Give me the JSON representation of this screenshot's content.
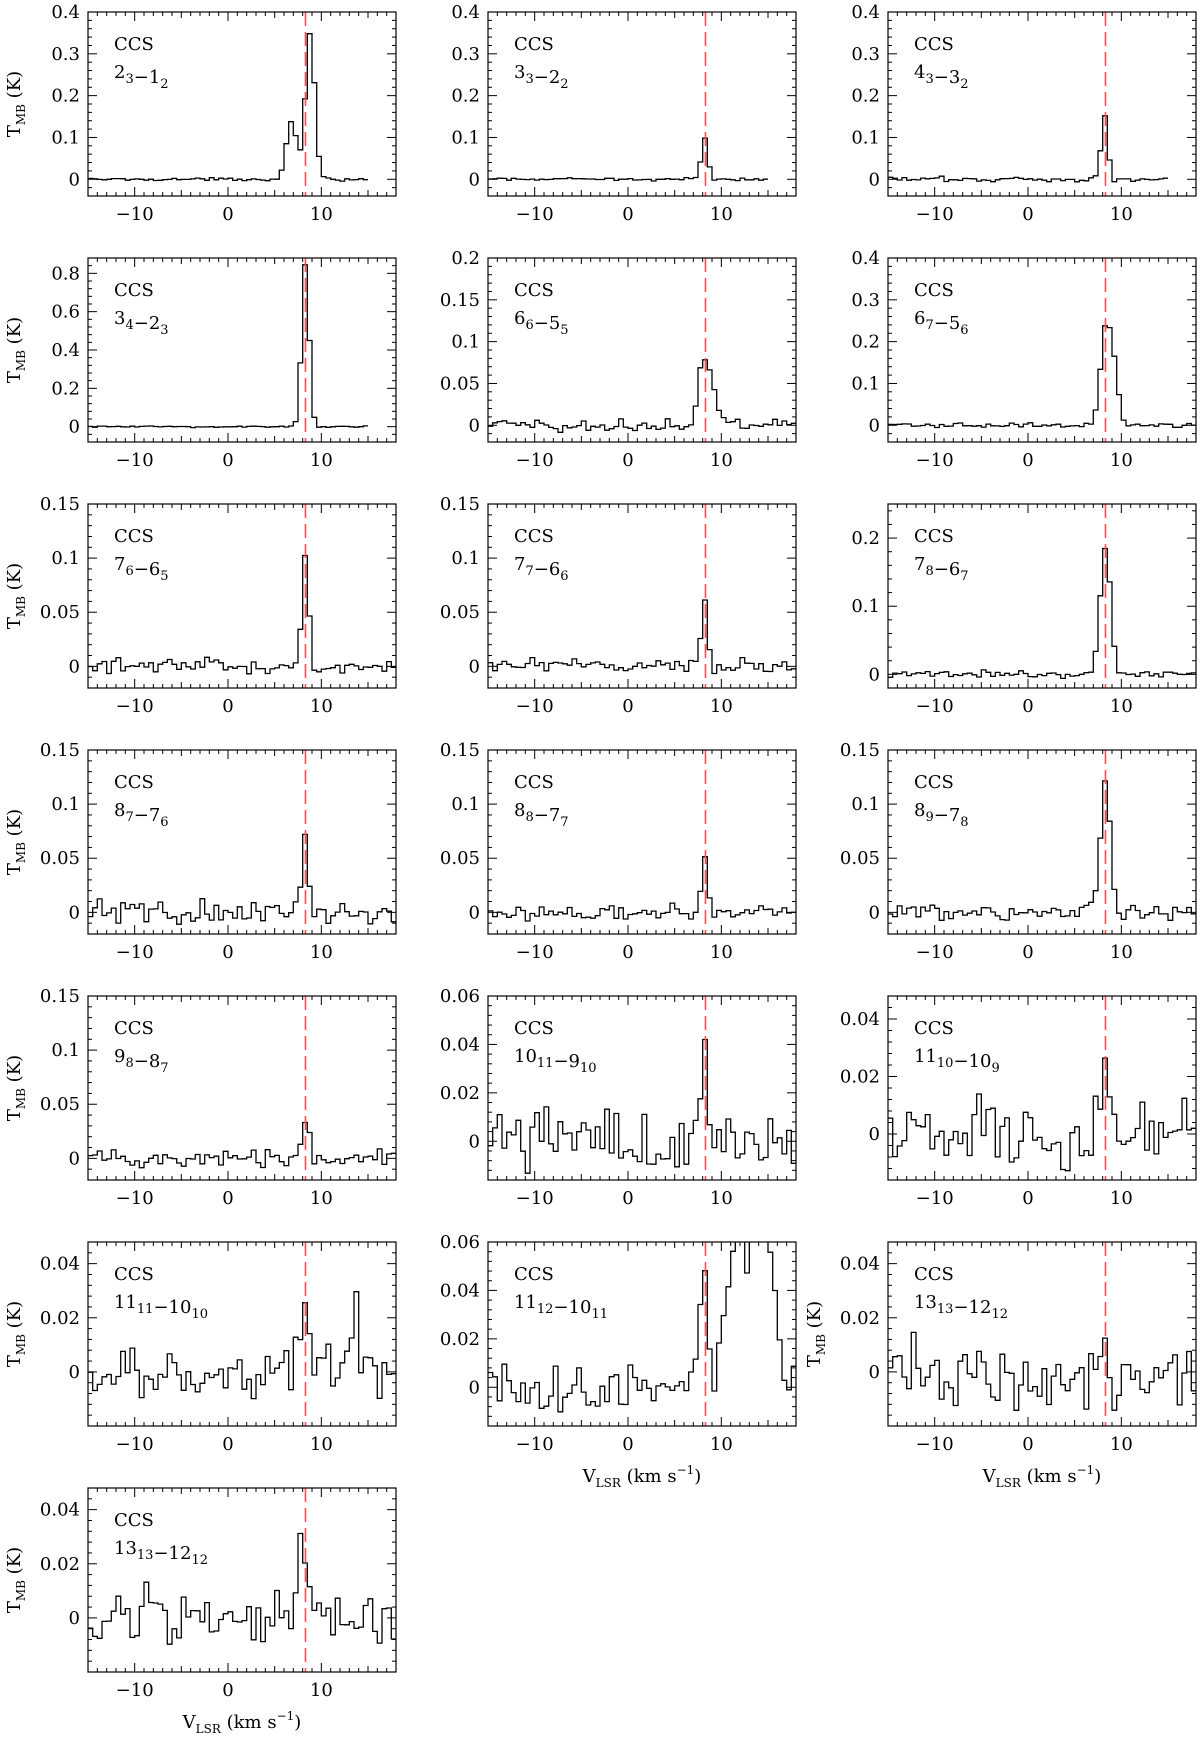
{
  "chart_data": {
    "type": "line",
    "step": true,
    "xlim": [
      -15,
      18
    ],
    "x_ticks": [
      -10,
      0,
      10
    ],
    "x_tick_labels": [
      "−10",
      "0",
      "10"
    ],
    "vlsr_marker": 8.3,
    "marker_color": "#ff4d4d",
    "xlabel": {
      "main": "V",
      "sub": "LSR",
      "rest": " (km s",
      "sup": "−1",
      "end": ")"
    },
    "ylabel": {
      "main": "T",
      "sub": "MB",
      "rest": " (K)"
    },
    "panels": [
      {
        "molecule": "CCS",
        "transition": [
          {
            "t": "2"
          },
          {
            "t": "3",
            "sub": true
          },
          {
            "t": "−1"
          },
          {
            "t": "2",
            "sub": true
          }
        ],
        "ylim": [
          -0.04,
          0.4
        ],
        "y_ticks": [
          0,
          0.1,
          0.2,
          0.3,
          0.4
        ],
        "y_tick_labels": [
          "0",
          "0.1",
          "0.2",
          "0.3",
          "0.4"
        ],
        "x_range": [
          -15,
          15
        ],
        "noise": 0.002,
        "peaks": [
          {
            "v": 6.8,
            "w": 0.55,
            "a": 0.14
          },
          {
            "v": 8.8,
            "w": 0.5,
            "a": 0.35
          }
        ],
        "show_ylabel": true,
        "show_xlabel": false
      },
      {
        "molecule": "CCS",
        "transition": [
          {
            "t": "3"
          },
          {
            "t": "3",
            "sub": true
          },
          {
            "t": "−2"
          },
          {
            "t": "2",
            "sub": true
          }
        ],
        "ylim": [
          -0.04,
          0.4
        ],
        "y_ticks": [
          0,
          0.1,
          0.2,
          0.3,
          0.4
        ],
        "y_tick_labels": [
          "0",
          "0.1",
          "0.2",
          "0.3",
          "0.4"
        ],
        "x_range": [
          -15,
          15
        ],
        "noise": 0.002,
        "peaks": [
          {
            "v": 8.2,
            "w": 0.35,
            "a": 0.1
          }
        ],
        "show_ylabel": false,
        "show_xlabel": false
      },
      {
        "molecule": "CCS",
        "transition": [
          {
            "t": "4"
          },
          {
            "t": "3",
            "sub": true
          },
          {
            "t": "−3"
          },
          {
            "t": "2",
            "sub": true
          }
        ],
        "ylim": [
          -0.04,
          0.4
        ],
        "y_ticks": [
          0,
          0.1,
          0.2,
          0.3,
          0.4
        ],
        "y_tick_labels": [
          "0",
          "0.1",
          "0.2",
          "0.3",
          "0.4"
        ],
        "x_range": [
          -15,
          15
        ],
        "noise": 0.004,
        "peaks": [
          {
            "v": 8.2,
            "w": 0.35,
            "a": 0.15
          }
        ],
        "show_ylabel": false,
        "show_xlabel": false
      },
      {
        "molecule": "CCS",
        "transition": [
          {
            "t": "3"
          },
          {
            "t": "4",
            "sub": true
          },
          {
            "t": "−2"
          },
          {
            "t": "3",
            "sub": true
          }
        ],
        "ylim": [
          -0.08,
          0.88
        ],
        "y_ticks": [
          0,
          0.2,
          0.4,
          0.6,
          0.8
        ],
        "y_tick_labels": [
          "0",
          "0.2",
          "0.4",
          "0.6",
          "0.8"
        ],
        "x_range": [
          -15,
          15
        ],
        "noise": 0.003,
        "peaks": [
          {
            "v": 8.3,
            "w": 0.4,
            "a": 0.85
          }
        ],
        "show_ylabel": true,
        "show_xlabel": false
      },
      {
        "molecule": "CCS",
        "transition": [
          {
            "t": "6"
          },
          {
            "t": "6",
            "sub": true
          },
          {
            "t": "−5"
          },
          {
            "t": "5",
            "sub": true
          }
        ],
        "ylim": [
          -0.02,
          0.2
        ],
        "y_ticks": [
          0,
          0.05,
          0.1,
          0.15,
          0.2
        ],
        "y_tick_labels": [
          "0",
          "0.05",
          "0.1",
          "0.15",
          "0.2"
        ],
        "x_range": [
          -15,
          18
        ],
        "noise": 0.005,
        "peaks": [
          {
            "v": 8.0,
            "w": 0.5,
            "a": 0.07
          },
          {
            "v": 9.0,
            "w": 0.5,
            "a": 0.05
          }
        ],
        "show_ylabel": false,
        "show_xlabel": false
      },
      {
        "molecule": "CCS",
        "transition": [
          {
            "t": "6"
          },
          {
            "t": "7",
            "sub": true
          },
          {
            "t": "−5"
          },
          {
            "t": "6",
            "sub": true
          }
        ],
        "ylim": [
          -0.04,
          0.4
        ],
        "y_ticks": [
          0,
          0.1,
          0.2,
          0.3,
          0.4
        ],
        "y_tick_labels": [
          "0",
          "0.1",
          "0.2",
          "0.3",
          "0.4"
        ],
        "x_range": [
          -15,
          18
        ],
        "noise": 0.003,
        "peaks": [
          {
            "v": 8.3,
            "w": 0.55,
            "a": 0.22
          },
          {
            "v": 9.2,
            "w": 0.5,
            "a": 0.12
          }
        ],
        "show_ylabel": false,
        "show_xlabel": false
      },
      {
        "molecule": "CCS",
        "transition": [
          {
            "t": "7"
          },
          {
            "t": "6",
            "sub": true
          },
          {
            "t": "−6"
          },
          {
            "t": "5",
            "sub": true
          }
        ],
        "ylim": [
          -0.02,
          0.15
        ],
        "y_ticks": [
          0,
          0.05,
          0.1,
          0.15
        ],
        "y_tick_labels": [
          "0",
          "0.05",
          "0.1",
          "0.15"
        ],
        "x_range": [
          -15,
          18
        ],
        "noise": 0.004,
        "peaks": [
          {
            "v": 8.3,
            "w": 0.35,
            "a": 0.1
          }
        ],
        "show_ylabel": true,
        "show_xlabel": false
      },
      {
        "molecule": "CCS",
        "transition": [
          {
            "t": "7"
          },
          {
            "t": "7",
            "sub": true
          },
          {
            "t": "−6"
          },
          {
            "t": "6",
            "sub": true
          }
        ],
        "ylim": [
          -0.02,
          0.15
        ],
        "y_ticks": [
          0,
          0.05,
          0.1,
          0.15
        ],
        "y_tick_labels": [
          "0",
          "0.05",
          "0.1",
          "0.15"
        ],
        "x_range": [
          -15,
          18
        ],
        "noise": 0.004,
        "peaks": [
          {
            "v": 8.2,
            "w": 0.35,
            "a": 0.06
          }
        ],
        "show_ylabel": false,
        "show_xlabel": false
      },
      {
        "molecule": "CCS",
        "transition": [
          {
            "t": "7"
          },
          {
            "t": "8",
            "sub": true
          },
          {
            "t": "−6"
          },
          {
            "t": "7",
            "sub": true
          }
        ],
        "ylim": [
          -0.02,
          0.25
        ],
        "y_ticks": [
          0,
          0.1,
          0.2
        ],
        "y_tick_labels": [
          "0",
          "0.1",
          "0.2"
        ],
        "x_range": [
          -15,
          18
        ],
        "noise": 0.003,
        "peaks": [
          {
            "v": 8.3,
            "w": 0.55,
            "a": 0.19
          }
        ],
        "show_ylabel": false,
        "show_xlabel": false
      },
      {
        "molecule": "CCS",
        "transition": [
          {
            "t": "8"
          },
          {
            "t": "7",
            "sub": true
          },
          {
            "t": "−7"
          },
          {
            "t": "6",
            "sub": true
          }
        ],
        "ylim": [
          -0.02,
          0.15
        ],
        "y_ticks": [
          0,
          0.05,
          0.1,
          0.15
        ],
        "y_tick_labels": [
          "0",
          "0.05",
          "0.1",
          "0.15"
        ],
        "x_range": [
          -15,
          18
        ],
        "noise": 0.007,
        "peaks": [
          {
            "v": 8.3,
            "w": 0.35,
            "a": 0.075
          }
        ],
        "show_ylabel": true,
        "show_xlabel": false
      },
      {
        "molecule": "CCS",
        "transition": [
          {
            "t": "8"
          },
          {
            "t": "8",
            "sub": true
          },
          {
            "t": "−7"
          },
          {
            "t": "7",
            "sub": true
          }
        ],
        "ylim": [
          -0.02,
          0.15
        ],
        "y_ticks": [
          0,
          0.05,
          0.1,
          0.15
        ],
        "y_tick_labels": [
          "0",
          "0.05",
          "0.1",
          "0.15"
        ],
        "x_range": [
          -15,
          18
        ],
        "noise": 0.004,
        "peaks": [
          {
            "v": 8.2,
            "w": 0.3,
            "a": 0.055
          }
        ],
        "show_ylabel": false,
        "show_xlabel": false
      },
      {
        "molecule": "CCS",
        "transition": [
          {
            "t": "8"
          },
          {
            "t": "9",
            "sub": true
          },
          {
            "t": "−7"
          },
          {
            "t": "8",
            "sub": true
          }
        ],
        "ylim": [
          -0.02,
          0.15
        ],
        "y_ticks": [
          0,
          0.05,
          0.1,
          0.15
        ],
        "y_tick_labels": [
          "0",
          "0.05",
          "0.1",
          "0.15"
        ],
        "x_range": [
          -15,
          18
        ],
        "noise": 0.004,
        "peaks": [
          {
            "v": 8.3,
            "w": 0.55,
            "a": 0.12
          }
        ],
        "show_ylabel": false,
        "show_xlabel": false
      },
      {
        "molecule": "CCS",
        "transition": [
          {
            "t": "9"
          },
          {
            "t": "8",
            "sub": true
          },
          {
            "t": "−8"
          },
          {
            "t": "7",
            "sub": true
          }
        ],
        "ylim": [
          -0.02,
          0.15
        ],
        "y_ticks": [
          0,
          0.05,
          0.1,
          0.15
        ],
        "y_tick_labels": [
          "0",
          "0.05",
          "0.1",
          "0.15"
        ],
        "x_range": [
          -15,
          18
        ],
        "noise": 0.005,
        "peaks": [
          {
            "v": 8.4,
            "w": 0.4,
            "a": 0.035
          }
        ],
        "show_ylabel": true,
        "show_xlabel": false
      },
      {
        "molecule": "CCS",
        "transition": [
          {
            "t": "10"
          },
          {
            "t": "11",
            "sub": true
          },
          {
            "t": "−9"
          },
          {
            "t": "10",
            "sub": true
          }
        ],
        "ylim": [
          -0.016,
          0.06
        ],
        "y_ticks": [
          0,
          0.02,
          0.04,
          0.06
        ],
        "y_tick_labels": [
          "0",
          "0.02",
          "0.04",
          "0.06"
        ],
        "x_range": [
          -15,
          18
        ],
        "noise": 0.009,
        "peaks": [
          {
            "v": 8.2,
            "w": 0.4,
            "a": 0.045
          }
        ],
        "show_ylabel": false,
        "show_xlabel": false
      },
      {
        "molecule": "CCS",
        "transition": [
          {
            "t": "11"
          },
          {
            "t": "10",
            "sub": true
          },
          {
            "t": "−10"
          },
          {
            "t": "9",
            "sub": true
          }
        ],
        "ylim": [
          -0.016,
          0.048
        ],
        "y_ticks": [
          0,
          0.02,
          0.04
        ],
        "y_tick_labels": [
          "0",
          "0.02",
          "0.04"
        ],
        "x_range": [
          -15,
          18
        ],
        "noise": 0.008,
        "peaks": [
          {
            "v": 8.5,
            "w": 0.8,
            "a": 0.02
          }
        ],
        "show_ylabel": false,
        "show_xlabel": false
      },
      {
        "molecule": "CCS",
        "transition": [
          {
            "t": "11"
          },
          {
            "t": "11",
            "sub": true
          },
          {
            "t": "−10"
          },
          {
            "t": "10",
            "sub": true
          }
        ],
        "ylim": [
          -0.02,
          0.048
        ],
        "y_ticks": [
          0,
          0.02,
          0.04
        ],
        "y_tick_labels": [
          "0",
          "0.02",
          "0.04"
        ],
        "x_range": [
          -15,
          18
        ],
        "noise": 0.007,
        "peaks": [
          {
            "v": 8.3,
            "w": 0.6,
            "a": 0.022
          },
          {
            "v": 13.5,
            "w": 0.6,
            "a": 0.02
          }
        ],
        "show_ylabel": true,
        "show_xlabel": false
      },
      {
        "molecule": "CCS",
        "transition": [
          {
            "t": "11"
          },
          {
            "t": "12",
            "sub": true
          },
          {
            "t": "−10"
          },
          {
            "t": "11",
            "sub": true
          }
        ],
        "ylim": [
          -0.016,
          0.06
        ],
        "y_ticks": [
          0,
          0.02,
          0.04,
          0.06
        ],
        "y_tick_labels": [
          "0",
          "0.02",
          "0.04",
          "0.06"
        ],
        "x_range": [
          -15,
          18
        ],
        "noise": 0.007,
        "peaks": [
          {
            "v": 8.0,
            "w": 0.5,
            "a": 0.04
          },
          {
            "v": 11.8,
            "w": 1.2,
            "a": 0.06
          },
          {
            "v": 14.6,
            "w": 1.0,
            "a": 0.07
          }
        ],
        "show_ylabel": false,
        "show_xlabel": true
      },
      {
        "molecule": "CCS",
        "transition": [
          {
            "t": "13"
          },
          {
            "t": "13",
            "sub": true
          },
          {
            "t": "−12"
          },
          {
            "t": "12",
            "sub": true
          }
        ],
        "ylim": [
          -0.02,
          0.048
        ],
        "y_ticks": [
          0,
          0.02,
          0.04
        ],
        "y_tick_labels": [
          "0",
          "0.02",
          "0.04"
        ],
        "x_range": [
          -15,
          18
        ],
        "noise": 0.009,
        "peaks": [
          {
            "v": 8.3,
            "w": 0.4,
            "a": 0.015
          }
        ],
        "show_ylabel": true,
        "show_xlabel": true
      },
      {
        "molecule": "CCS",
        "transition": [
          {
            "t": "13"
          },
          {
            "t": "13",
            "sub": true
          },
          {
            "t": "−12"
          },
          {
            "t": "12",
            "sub": true
          }
        ],
        "ylim": [
          -0.02,
          0.048
        ],
        "y_ticks": [
          0,
          0.02,
          0.04
        ],
        "y_tick_labels": [
          "0",
          "0.02",
          "0.04"
        ],
        "x_range": [
          -15,
          18
        ],
        "noise": 0.007,
        "peaks": [
          {
            "v": 8.2,
            "w": 0.6,
            "a": 0.025
          }
        ],
        "show_ylabel": true,
        "show_xlabel": true
      }
    ]
  }
}
